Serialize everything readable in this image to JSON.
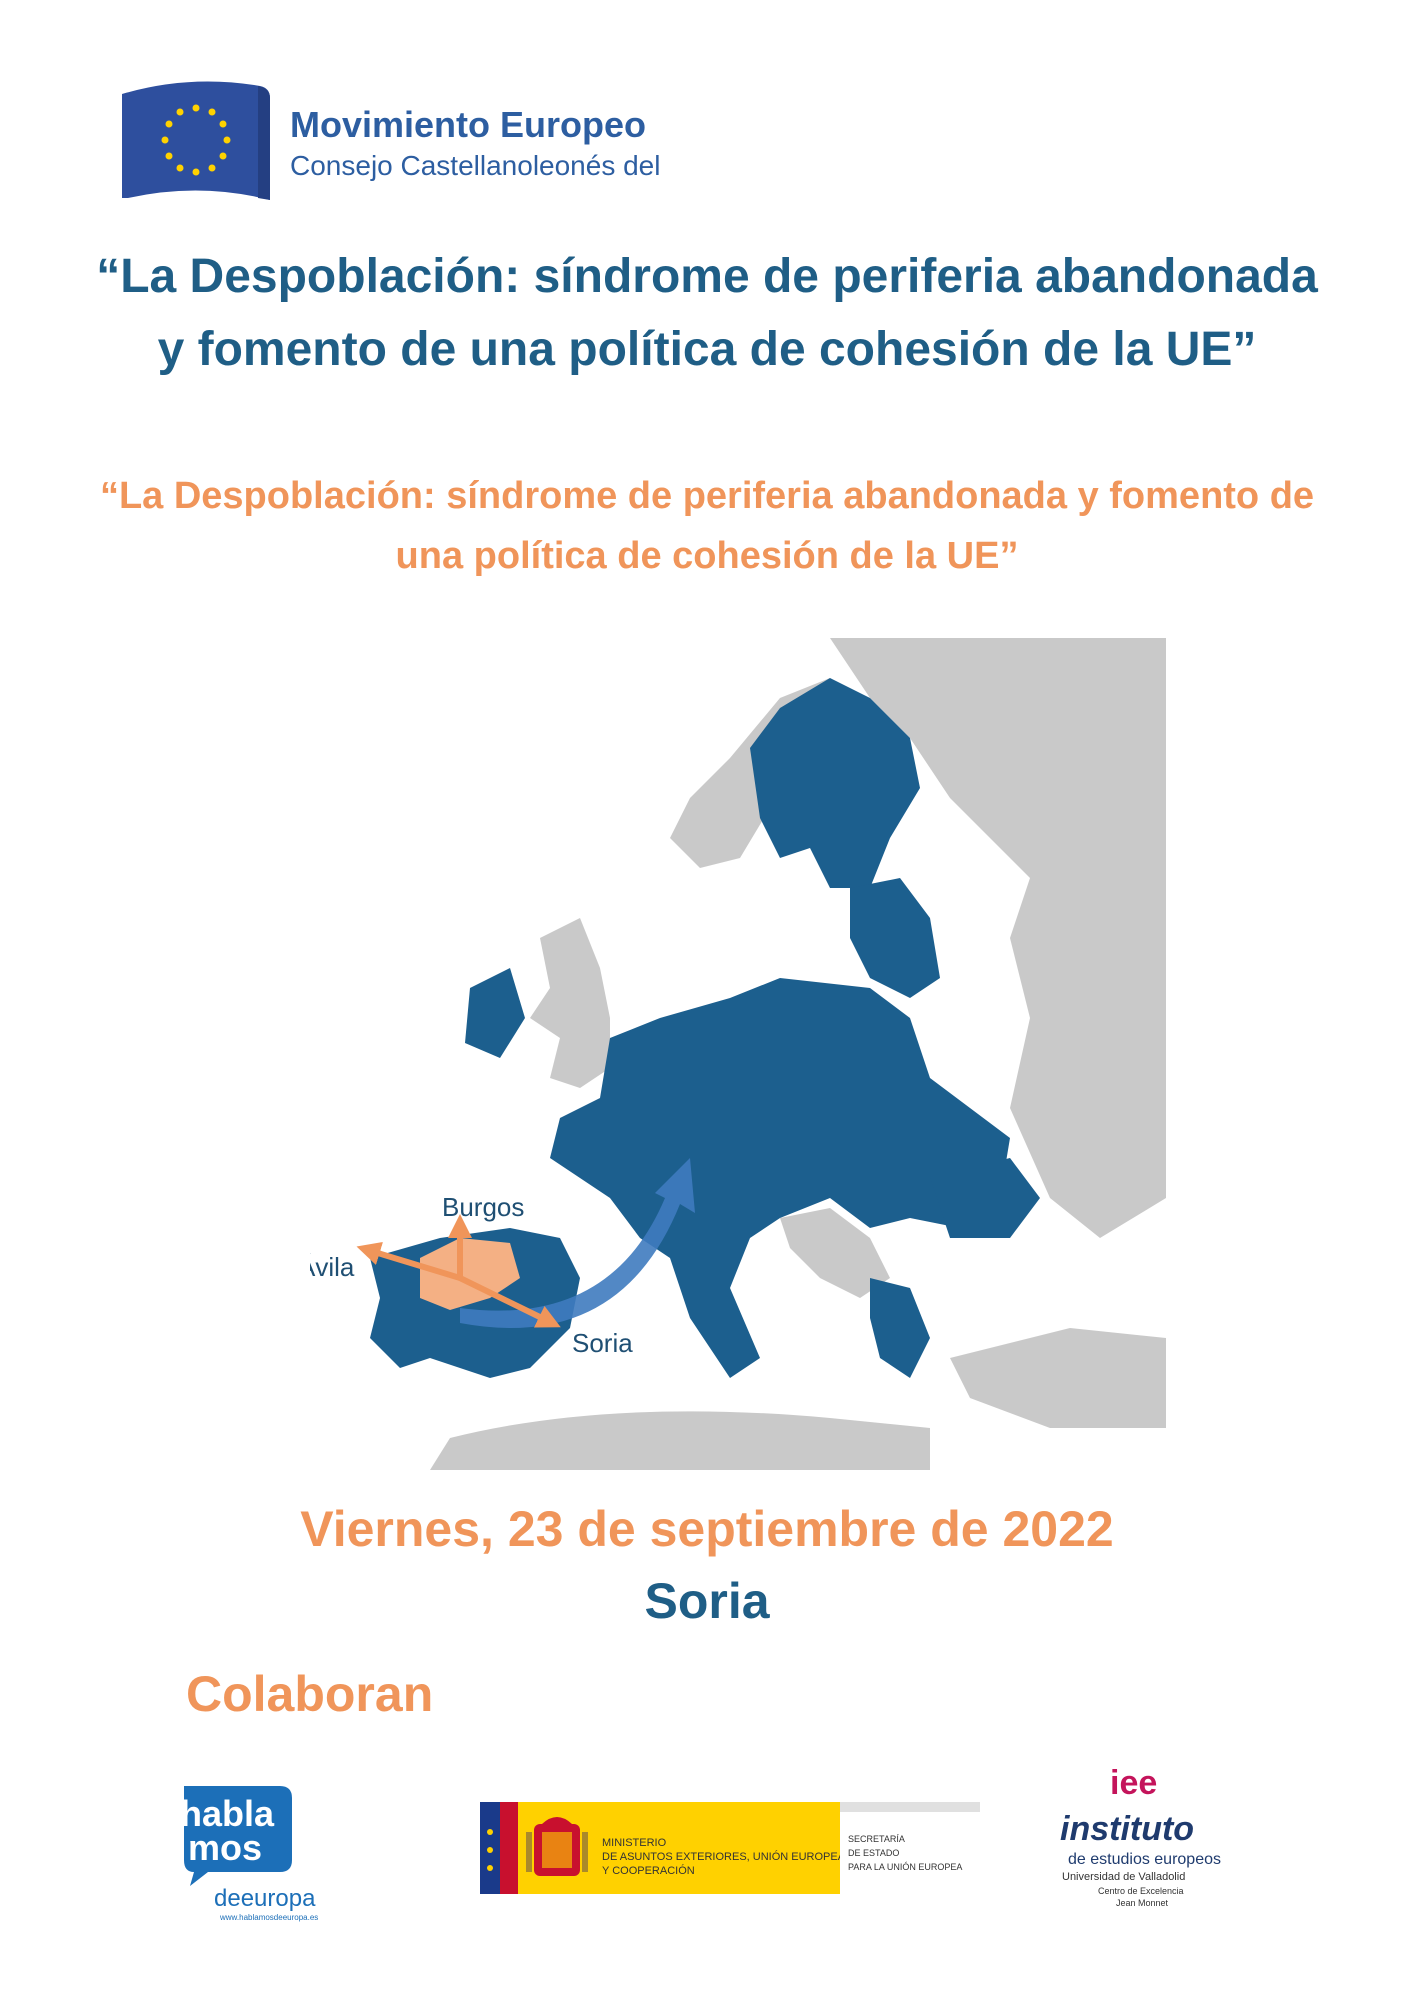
{
  "header": {
    "org_name": "Movimiento Europeo",
    "org_sub": "Consejo Castellanoleonés del"
  },
  "title_main": "“La Despoblación: síndrome de periferia abandonada y fomento de una política de cohesión de la UE”",
  "title_sub": "“La Despoblación: síndrome de periferia abandonada y fomento de una política de cohesión de la UE”",
  "map": {
    "labels": {
      "burgos": "Burgos",
      "avila": "Ávila",
      "soria": "Soria"
    },
    "colors": {
      "eu": "#1c5f8e",
      "non_eu": "#c9c9c9",
      "castilla": "#f4b084",
      "arrow": "#f0955a",
      "big_arrow": "#3f7bbf"
    }
  },
  "event": {
    "date": "Viernes, 23 de septiembre de 2022",
    "place": "Soria"
  },
  "colaboran": "Colaboran",
  "logos": {
    "hablamos": {
      "line1": "habla",
      "line2": "mos",
      "line3": "deeuropa",
      "url": "www.hablamosdeeuropa.es"
    },
    "ministerio": {
      "ministry": "MINISTERIO",
      "ministry_2": "DE ASUNTOS EXTERIORES, UNIÓN EUROPEA",
      "ministry_3": "Y COOPERACIÓN",
      "secretaria_1": "SECRETARÍA",
      "secretaria_2": "DE ESTADO",
      "secretaria_3": "PARA LA UNIÓN EUROPEA"
    },
    "ie": {
      "mark": "iee",
      "line1": "instituto",
      "line2": "de estudios europeos",
      "line3": "Universidad de Valladolid",
      "line4": "Centro de Excelencia",
      "line5": "Jean Monnet"
    }
  }
}
